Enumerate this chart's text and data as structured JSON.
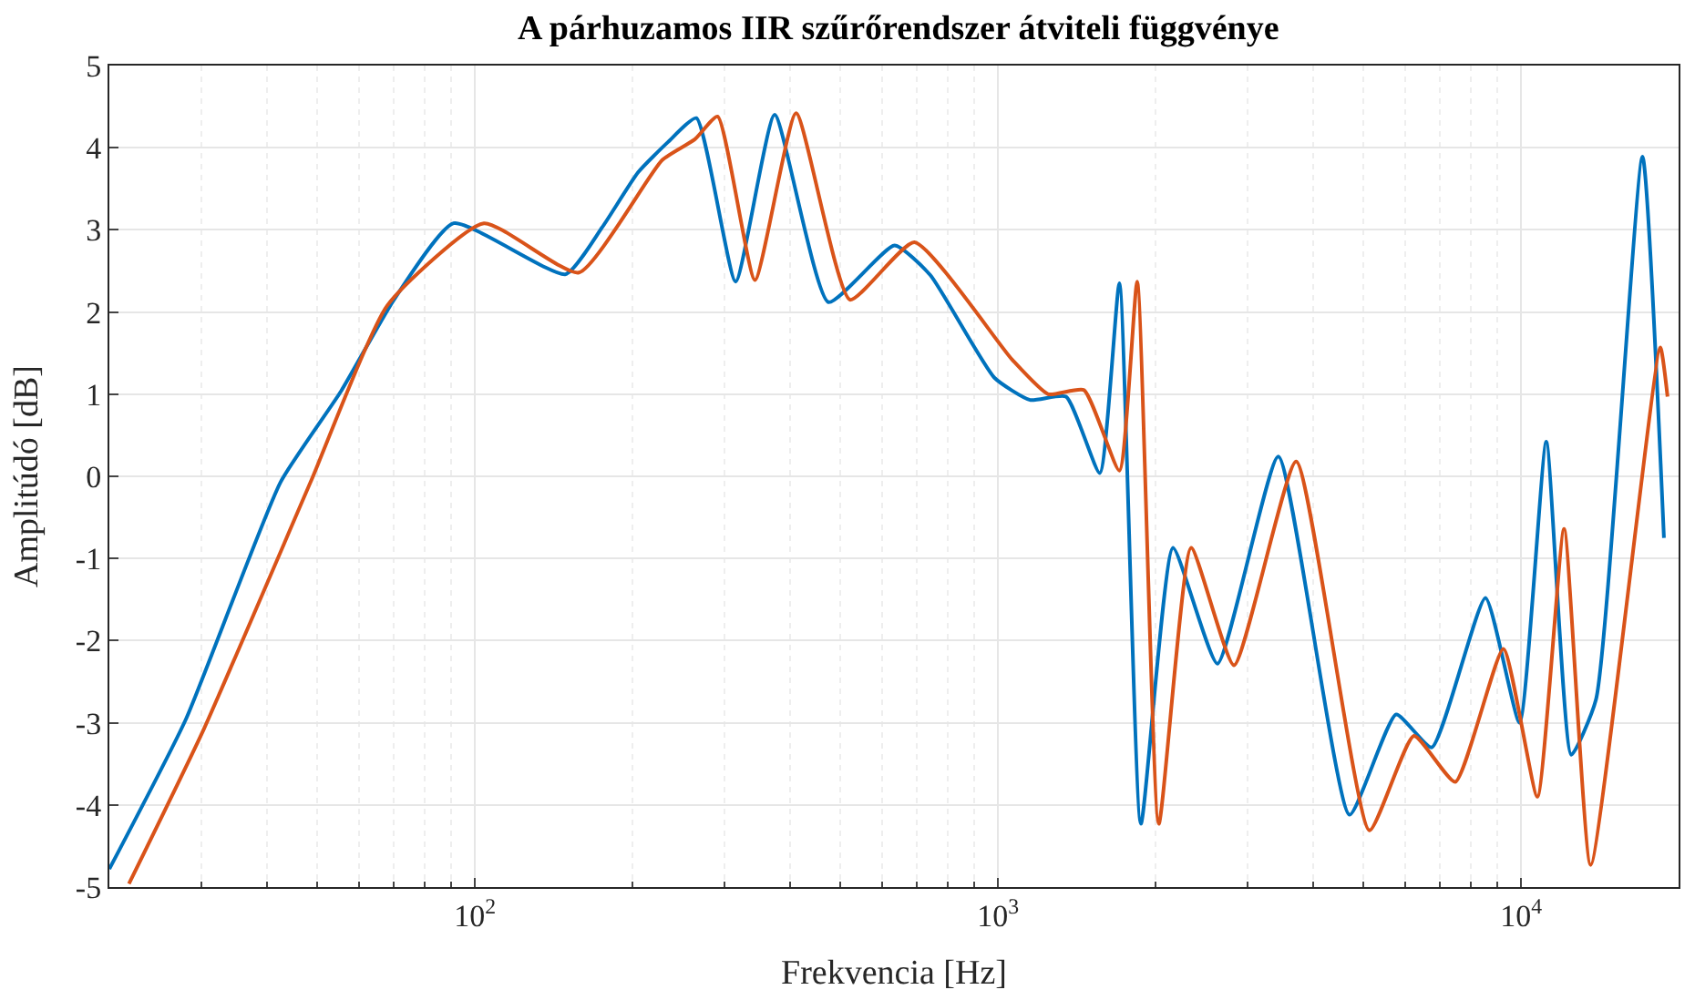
{
  "chart_data": {
    "type": "line",
    "title": "A párhuzamos IIR szűrőrendszer átviteli függvénye",
    "xlabel": "Frekvencia [Hz]",
    "ylabel": "Amplitúdó [dB]",
    "log": "x",
    "grid": true,
    "marker": "none",
    "line_style": "solid",
    "xlim": [
      20,
      20000
    ],
    "ylim": [
      -5,
      5
    ],
    "xticks": [
      {
        "value": 100,
        "label": "10$^{2}$"
      },
      {
        "value": 1000,
        "label": "10$^{3}$"
      },
      {
        "value": 10000,
        "label": "10$^{4}$"
      }
    ],
    "yticks": [
      -5,
      -4,
      -3,
      -2,
      -1,
      0,
      1,
      2,
      3,
      4,
      5
    ],
    "series": [
      {
        "color": "#0072bd",
        "x": [
          20,
          28,
          42.5,
          55.5,
          70,
          91,
          149,
          175,
          205,
          234,
          265,
          315,
          374,
          474,
          634,
          742,
          984,
          1151,
          1349,
          1565,
          1706,
          1875,
          2160,
          2627,
          3434,
          4699,
          5768,
          6748,
          8547,
          9931,
          11170,
          12470,
          13900,
          17060,
          18750
        ],
        "values": [
          -4.78,
          -2.96,
          -0.07,
          1.04,
          2.15,
          3.08,
          2.46,
          3.03,
          3.7,
          4.07,
          4.36,
          2.37,
          4.4,
          2.12,
          2.81,
          2.45,
          1.2,
          0.93,
          0.97,
          0.04,
          2.35,
          -4.23,
          -0.87,
          -2.28,
          0.24,
          -4.12,
          -2.9,
          -3.3,
          -1.48,
          -3.0,
          0.42,
          -3.39,
          -2.72,
          3.89,
          -0.75
        ]
      },
      {
        "color": "#d95319",
        "x": [
          21.8,
          30.3,
          48.5,
          68,
          104,
          158,
          228,
          263,
          291,
          343,
          411,
          521,
          692,
          1064,
          1247,
          1459,
          1706,
          1845,
          2029,
          2339,
          2825,
          3715,
          5129,
          6237,
          7482,
          9247,
          10740,
          12080,
          13580,
          18450,
          19050
        ],
        "values": [
          -4.96,
          -3.08,
          -0.07,
          2.08,
          3.08,
          2.48,
          3.85,
          4.1,
          4.38,
          2.39,
          4.42,
          2.15,
          2.85,
          1.42,
          1.0,
          1.05,
          0.07,
          2.37,
          -4.23,
          -0.87,
          -2.3,
          0.18,
          -4.31,
          -3.16,
          -3.72,
          -2.1,
          -3.9,
          -0.64,
          -4.73,
          1.57,
          0.97
        ]
      }
    ]
  }
}
